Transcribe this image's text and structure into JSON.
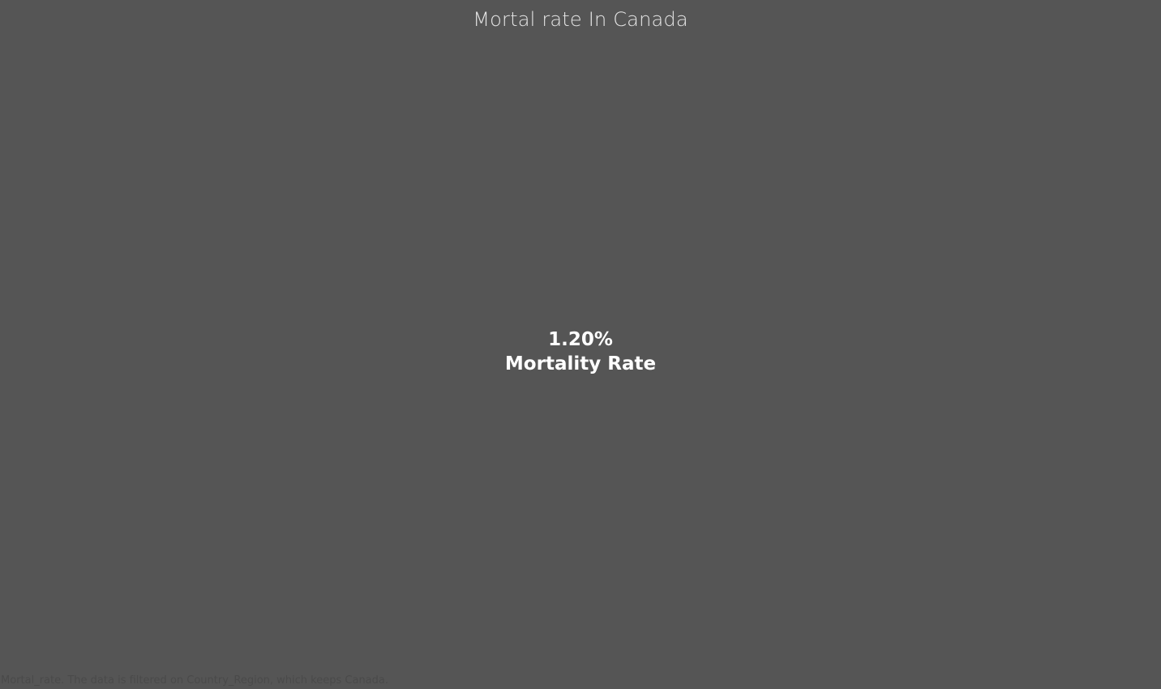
{
  "viz": {
    "title": "Mortal rate In Canada",
    "kpi": {
      "value": "1.20%",
      "label": "Mortality Rate"
    },
    "caption": "Mortal_rate. The data is filtered on Country_Region, which keeps Canada."
  },
  "colors": {
    "background": "#555555",
    "title": "#e6e6e6",
    "kpi_text": "#ffffff",
    "caption": "#4a4a4a"
  }
}
